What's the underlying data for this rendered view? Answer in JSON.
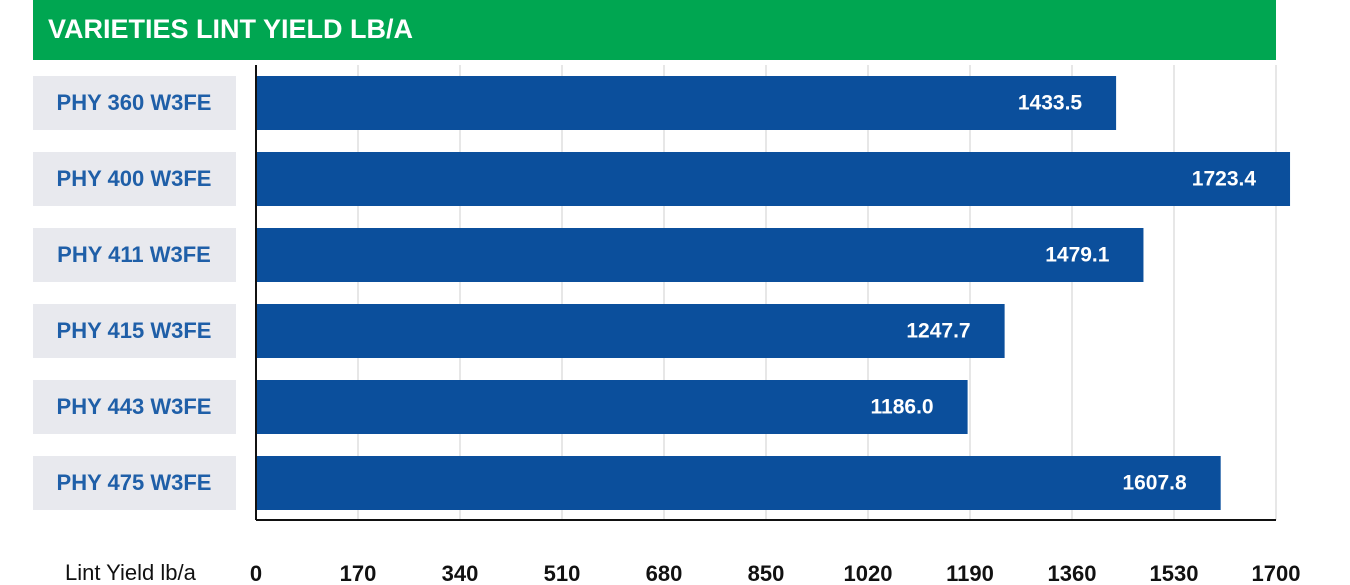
{
  "chart_data": {
    "type": "bar",
    "orientation": "horizontal",
    "title": "VARIETIES LINT YIELD LB/A",
    "categories": [
      "PHY 360 W3FE",
      "PHY 400 W3FE",
      "PHY 411 W3FE",
      "PHY 415 W3FE",
      "PHY 443 W3FE",
      "PHY 475 W3FE"
    ],
    "values": [
      1433.5,
      1723.4,
      1479.1,
      1247.7,
      1186.0,
      1607.8
    ],
    "value_labels": [
      "1433.5",
      "1723.4",
      "1479.1",
      "1247.7",
      "1186.0",
      "1607.8"
    ],
    "color": "#0b4f9c",
    "xlabel": "Lint Yield lb/a",
    "xlim": [
      0,
      1700
    ],
    "xticks": [
      0,
      170,
      340,
      510,
      680,
      850,
      1020,
      1190,
      1360,
      1530,
      1700
    ],
    "grid": true
  }
}
